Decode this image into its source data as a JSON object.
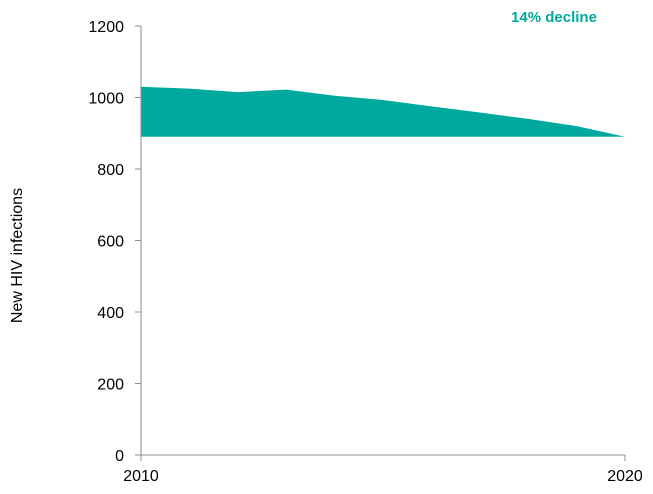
{
  "chart_data": {
    "type": "area",
    "title": "",
    "xlabel": "",
    "ylabel": "New HIV infections",
    "annotation": "14% decline",
    "x": [
      2010,
      2011,
      2012,
      2013,
      2014,
      2015,
      2016,
      2017,
      2018,
      2019,
      2020
    ],
    "series": [
      {
        "values": [
          1030,
          1025,
          1015,
          1022,
          1005,
          993,
          975,
          958,
          940,
          920,
          890
        ]
      }
    ],
    "baseline": 890,
    "xlim": [
      2010,
      2020
    ],
    "ylim": [
      0,
      1200
    ],
    "x_ticks": [
      {
        "value": 2010,
        "label": "2010"
      },
      {
        "value": 2020,
        "label": "2020"
      }
    ],
    "y_ticks": [
      {
        "value": 0,
        "label": "0"
      },
      {
        "value": 200,
        "label": "200"
      },
      {
        "value": 400,
        "label": "400"
      },
      {
        "value": 600,
        "label": "600"
      },
      {
        "value": 800,
        "label": "800"
      },
      {
        "value": 1000,
        "label": "1000"
      },
      {
        "value": 1200,
        "label": "1200"
      }
    ],
    "grid": false,
    "legend": "none",
    "fill_color": "#00a99d",
    "annotation_color": "#00a99d",
    "axis_color": "#8c8c8c"
  }
}
